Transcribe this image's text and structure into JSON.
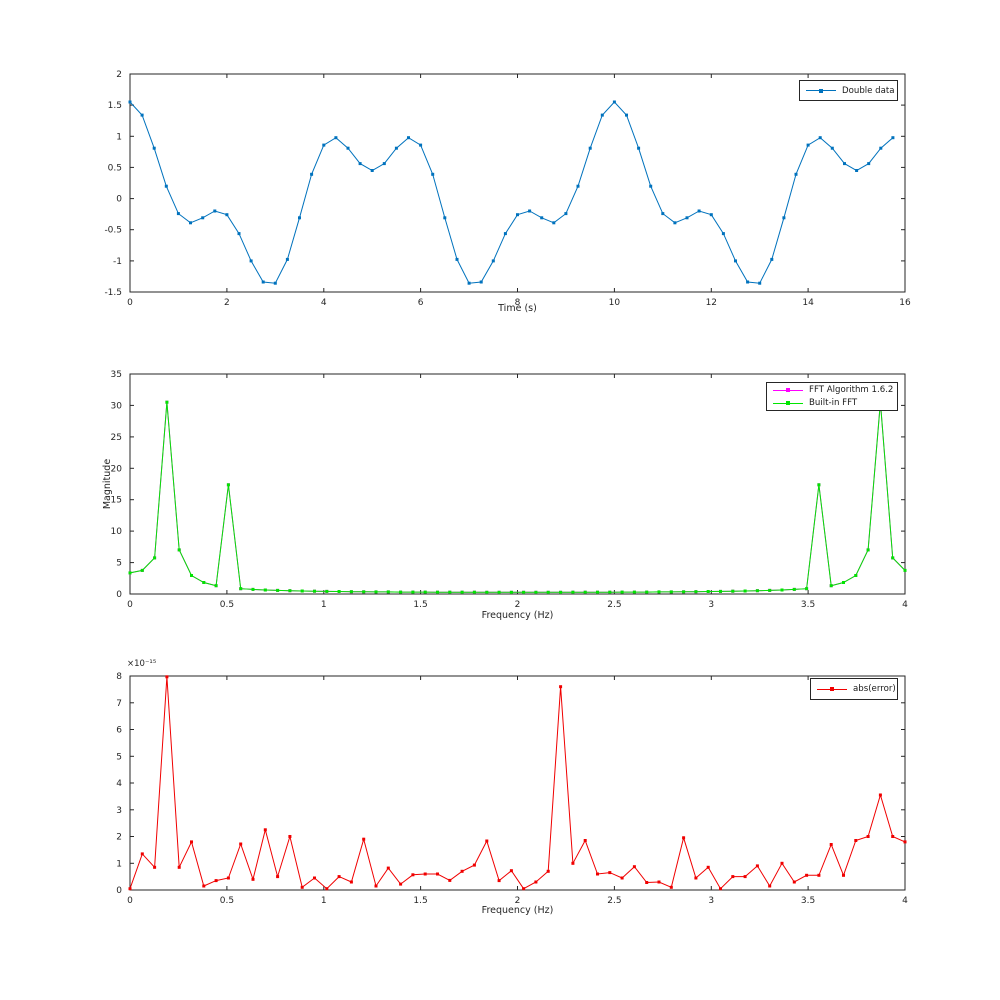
{
  "figure": {
    "background": "#ffffff",
    "axis_color": "#262626",
    "text_color": "#262626"
  },
  "chart_data": [
    {
      "type": "line",
      "title": "",
      "xlabel": "Time (s)",
      "ylabel": "",
      "xlim": [
        0,
        16
      ],
      "ylim": [
        -1.5,
        2
      ],
      "xticks": [
        0,
        2,
        4,
        6,
        8,
        10,
        12,
        14,
        16
      ],
      "yticks": [
        -1.5,
        -1,
        -0.5,
        0,
        0.5,
        1,
        1.5,
        2
      ],
      "grid": false,
      "legend_position": "top-right-inside",
      "legend": [
        {
          "label": "Double data",
          "color": "#0072bd"
        }
      ],
      "series": [
        {
          "name": "Double data",
          "color": "#0072bd",
          "marker": "square",
          "x": [
            0,
            0.25,
            0.5,
            0.75,
            1,
            1.25,
            1.5,
            1.75,
            2,
            2.25,
            2.5,
            2.75,
            3,
            3.25,
            3.5,
            3.75,
            4,
            4.25,
            4.5,
            4.75,
            5,
            5.25,
            5.5,
            5.75,
            6,
            6.25,
            6.5,
            6.75,
            7,
            7.25,
            7.5,
            7.75,
            8,
            8.25,
            8.5,
            8.75,
            9,
            9.25,
            9.5,
            9.75,
            10,
            10.25,
            10.5,
            10.75,
            11,
            11.25,
            11.5,
            11.75,
            12,
            12.25,
            12.5,
            12.75,
            13,
            13.25,
            13.5,
            13.75,
            14,
            14.25,
            14.5,
            14.75,
            15,
            15.25,
            15.5,
            15.75
          ],
          "y": [
            1.55,
            1.34,
            0.809,
            0.199,
            -0.241,
            -0.389,
            -0.309,
            -0.199,
            -0.259,
            -0.562,
            -1,
            -1.34,
            -1.359,
            -0.977,
            -0.309,
            0.389,
            0.859,
            0.977,
            0.809,
            0.562,
            0.45,
            0.562,
            0.809,
            0.977,
            0.859,
            0.389,
            -0.309,
            -0.977,
            -1.359,
            -1.34,
            -1,
            -0.562,
            -0.259,
            -0.199,
            -0.309,
            -0.389,
            -0.241,
            0.199,
            0.809,
            1.34,
            1.55,
            1.34,
            0.809,
            0.199,
            -0.241,
            -0.389,
            -0.309,
            -0.199,
            -0.259,
            -0.562,
            -1,
            -1.34,
            -1.359,
            -0.977,
            -0.309,
            0.389,
            0.859,
            0.977,
            0.809,
            0.562,
            0.45,
            0.562,
            0.809,
            0.977
          ]
        }
      ]
    },
    {
      "type": "line",
      "title": "",
      "xlabel": "Frequency (Hz)",
      "ylabel": "Magnitude",
      "xlim": [
        0,
        4
      ],
      "ylim": [
        0,
        35
      ],
      "xticks": [
        0,
        0.5,
        1,
        1.5,
        2,
        2.5,
        3,
        3.5,
        4
      ],
      "yticks": [
        0,
        5,
        10,
        15,
        20,
        25,
        30,
        35
      ],
      "grid": false,
      "legend_position": "top-right-inside",
      "legend": [
        {
          "label": "FFT Algorithm 1.6.2",
          "color": "#ff00ff"
        },
        {
          "label": "Built-in FFT",
          "color": "#00e600"
        }
      ],
      "series": [
        {
          "name": "FFT Algorithm 1.6.2",
          "color": "#ff00ff",
          "marker": "square",
          "x": [
            0,
            0.0635,
            0.127,
            0.1905,
            0.254,
            0.3175,
            0.381,
            0.4444,
            0.5079,
            0.5714,
            0.6349,
            0.6984,
            0.7619,
            0.8254,
            0.8889,
            0.9524,
            1.0159,
            1.0794,
            1.1429,
            1.2063,
            1.2698,
            1.3333,
            1.3968,
            1.4603,
            1.5238,
            1.5873,
            1.6508,
            1.7143,
            1.7778,
            1.8413,
            1.9048,
            1.9683,
            2.0317,
            2.0952,
            2.1587,
            2.2222,
            2.2857,
            2.3492,
            2.4127,
            2.4762,
            2.5397,
            2.6032,
            2.6667,
            2.7302,
            2.7937,
            2.8571,
            2.9206,
            2.9841,
            3.0476,
            3.1111,
            3.1746,
            3.2381,
            3.3016,
            3.3651,
            3.4286,
            3.4921,
            3.5556,
            3.619,
            3.6825,
            3.746,
            3.8095,
            3.873,
            3.9365,
            4
          ],
          "y": [
            3.35,
            3.76,
            5.75,
            30.52,
            7.02,
            2.95,
            1.83,
            1.32,
            17.37,
            0.85,
            0.73,
            0.64,
            0.57,
            0.52,
            0.48,
            0.44,
            0.41,
            0.39,
            0.37,
            0.35,
            0.34,
            0.33,
            0.31,
            0.3,
            0.3,
            0.29,
            0.29,
            0.28,
            0.28,
            0.27,
            0.27,
            0.27,
            0.27,
            0.27,
            0.27,
            0.27,
            0.28,
            0.28,
            0.29,
            0.29,
            0.3,
            0.3,
            0.31,
            0.33,
            0.34,
            0.35,
            0.37,
            0.39,
            0.41,
            0.44,
            0.48,
            0.52,
            0.57,
            0.64,
            0.73,
            0.85,
            17.37,
            1.32,
            1.83,
            2.95,
            7.02,
            30.52,
            5.75,
            3.76
          ]
        },
        {
          "name": "Built-in FFT",
          "color": "#00e600",
          "marker": "square",
          "x": [
            0,
            0.0635,
            0.127,
            0.1905,
            0.254,
            0.3175,
            0.381,
            0.4444,
            0.5079,
            0.5714,
            0.6349,
            0.6984,
            0.7619,
            0.8254,
            0.8889,
            0.9524,
            1.0159,
            1.0794,
            1.1429,
            1.2063,
            1.2698,
            1.3333,
            1.3968,
            1.4603,
            1.5238,
            1.5873,
            1.6508,
            1.7143,
            1.7778,
            1.8413,
            1.9048,
            1.9683,
            2.0317,
            2.0952,
            2.1587,
            2.2222,
            2.2857,
            2.3492,
            2.4127,
            2.4762,
            2.5397,
            2.6032,
            2.6667,
            2.7302,
            2.7937,
            2.8571,
            2.9206,
            2.9841,
            3.0476,
            3.1111,
            3.1746,
            3.2381,
            3.3016,
            3.3651,
            3.4286,
            3.4921,
            3.5556,
            3.619,
            3.6825,
            3.746,
            3.8095,
            3.873,
            3.9365,
            4
          ],
          "y": [
            3.35,
            3.76,
            5.75,
            30.52,
            7.02,
            2.95,
            1.83,
            1.32,
            17.37,
            0.85,
            0.73,
            0.64,
            0.57,
            0.52,
            0.48,
            0.44,
            0.41,
            0.39,
            0.37,
            0.35,
            0.34,
            0.33,
            0.31,
            0.3,
            0.3,
            0.29,
            0.29,
            0.28,
            0.28,
            0.27,
            0.27,
            0.27,
            0.27,
            0.27,
            0.27,
            0.27,
            0.28,
            0.28,
            0.29,
            0.29,
            0.3,
            0.3,
            0.31,
            0.33,
            0.34,
            0.35,
            0.37,
            0.39,
            0.41,
            0.44,
            0.48,
            0.52,
            0.57,
            0.64,
            0.73,
            0.85,
            17.37,
            1.32,
            1.83,
            2.95,
            7.02,
            30.52,
            5.75,
            3.76
          ]
        }
      ]
    },
    {
      "type": "line",
      "title": "",
      "xlabel": "Frequency (Hz)",
      "ylabel": "",
      "y_exponent_label": "×10⁻¹⁵",
      "y_scale": 1e-15,
      "xlim": [
        0,
        4
      ],
      "ylim": [
        0,
        8
      ],
      "xticks": [
        0,
        0.5,
        1,
        1.5,
        2,
        2.5,
        3,
        3.5,
        4
      ],
      "yticks": [
        0,
        1,
        2,
        3,
        4,
        5,
        6,
        7,
        8
      ],
      "grid": false,
      "legend_position": "top-right-inside",
      "legend": [
        {
          "label": "abs(error)",
          "color": "#f00000"
        }
      ],
      "series": [
        {
          "name": "abs(error)",
          "color": "#f00000",
          "marker": "square",
          "x": [
            0,
            0.0635,
            0.127,
            0.1905,
            0.254,
            0.3175,
            0.381,
            0.4444,
            0.5079,
            0.5714,
            0.6349,
            0.6984,
            0.7619,
            0.8254,
            0.8889,
            0.9524,
            1.0159,
            1.0794,
            1.1429,
            1.2063,
            1.2698,
            1.3333,
            1.3968,
            1.4603,
            1.5238,
            1.5873,
            1.6508,
            1.7143,
            1.7778,
            1.8413,
            1.9048,
            1.9683,
            2.0317,
            2.0952,
            2.1587,
            2.2222,
            2.2857,
            2.3492,
            2.4127,
            2.4762,
            2.5397,
            2.6032,
            2.6667,
            2.7302,
            2.7937,
            2.8571,
            2.9206,
            2.9841,
            3.0476,
            3.1111,
            3.1746,
            3.2381,
            3.3016,
            3.3651,
            3.4286,
            3.4921,
            3.5556,
            3.619,
            3.6825,
            3.746,
            3.8095,
            3.873,
            3.9365,
            4
          ],
          "y": [
            0.05,
            1.35,
            0.85,
            7.97,
            0.85,
            1.8,
            0.15,
            0.35,
            0.45,
            1.72,
            0.4,
            2.25,
            0.5,
            2,
            0.1,
            0.45,
            0.05,
            0.5,
            0.3,
            1.9,
            0.15,
            0.82,
            0.22,
            0.57,
            0.6,
            0.6,
            0.36,
            0.7,
            0.93,
            1.83,
            0.35,
            0.72,
            0.05,
            0.3,
            0.7,
            7.6,
            1,
            1.85,
            0.6,
            0.65,
            0.45,
            0.87,
            0.28,
            0.3,
            0.1,
            1.95,
            0.45,
            0.85,
            0.05,
            0.5,
            0.5,
            0.9,
            0.15,
            1,
            0.3,
            0.55,
            0.55,
            1.7,
            0.55,
            1.85,
            2,
            3.55,
            2,
            1.8
          ]
        }
      ]
    }
  ]
}
